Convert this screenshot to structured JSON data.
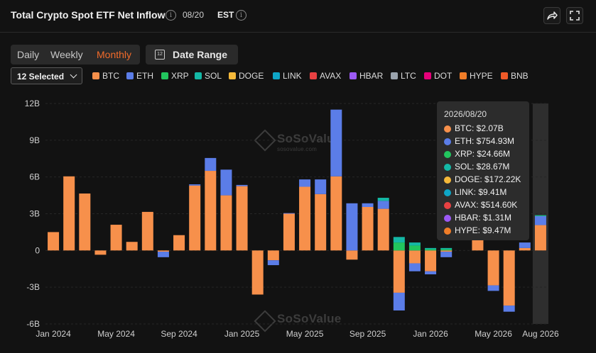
{
  "header": {
    "title": "Total Crypto Spot ETF Net Inflow",
    "date": "08/20",
    "timezone": "EST"
  },
  "toolbar": {
    "periods": [
      "Daily",
      "Weekly",
      "Monthly"
    ],
    "active_period": "Monthly",
    "date_range_label": "Date Range",
    "asset_select_label": "12 Selected"
  },
  "legend": [
    {
      "name": "BTC",
      "color": "#f7904b"
    },
    {
      "name": "ETH",
      "color": "#5b7de8"
    },
    {
      "name": "XRP",
      "color": "#22c55e"
    },
    {
      "name": "SOL",
      "color": "#14b8a6"
    },
    {
      "name": "DOGE",
      "color": "#f5b93a"
    },
    {
      "name": "LINK",
      "color": "#0ea5c6"
    },
    {
      "name": "AVAX",
      "color": "#e84142"
    },
    {
      "name": "HBAR",
      "color": "#9b59f5"
    },
    {
      "name": "LTC",
      "color": "#9aa3ad"
    },
    {
      "name": "DOT",
      "color": "#e6007a"
    },
    {
      "name": "HYPE",
      "color": "#f07d28"
    },
    {
      "name": "BNB",
      "color": "#f05a28"
    }
  ],
  "watermark": {
    "brand": "SoSoValue",
    "sub": "sosovalue.com"
  },
  "tooltip": {
    "date": "2026/08/20",
    "rows": [
      {
        "label": "BTC: $2.07B",
        "color": "#f7904b"
      },
      {
        "label": "ETH: $754.93M",
        "color": "#5b7de8"
      },
      {
        "label": "XRP: $24.66M",
        "color": "#22c55e"
      },
      {
        "label": "SOL: $28.67M",
        "color": "#14b8a6"
      },
      {
        "label": "DOGE: $172.22K",
        "color": "#f5b93a"
      },
      {
        "label": "LINK: $9.41M",
        "color": "#0ea5c6"
      },
      {
        "label": "AVAX: $514.60K",
        "color": "#e84142"
      },
      {
        "label": "HBAR: $1.31M",
        "color": "#9b59f5"
      },
      {
        "label": "HYPE: $9.47M",
        "color": "#f07d28"
      }
    ]
  },
  "chart_data": {
    "type": "bar",
    "stacked": true,
    "title": "Total Crypto Spot ETF Net Inflow",
    "ylim": [
      -6,
      12
    ],
    "yticks": [
      12,
      9,
      6,
      3,
      0,
      -3,
      -6
    ],
    "ytick_labels": [
      "12B",
      "9B",
      "6B",
      "3B",
      "0",
      "-3B",
      "-6B"
    ],
    "y_unit": "USD billions",
    "x_tick_labels": [
      {
        "label": "Jan 2024",
        "month_index": 0
      },
      {
        "label": "May 2024",
        "month_index": 4
      },
      {
        "label": "Sep 2024",
        "month_index": 8
      },
      {
        "label": "Jan 2025",
        "month_index": 12
      },
      {
        "label": "May 2025",
        "month_index": 16
      },
      {
        "label": "Sep 2025",
        "month_index": 20
      },
      {
        "label": "Jan 2026",
        "month_index": 24
      },
      {
        "label": "May 2026",
        "month_index": 28
      },
      {
        "label": "Aug 2026",
        "month_index": 31
      }
    ],
    "categories": [
      "2024-01",
      "2024-02",
      "2024-03",
      "2024-04",
      "2024-05",
      "2024-06",
      "2024-07",
      "2024-08",
      "2024-09",
      "2024-10",
      "2024-11",
      "2024-12",
      "2025-01",
      "2025-02",
      "2025-03",
      "2025-04",
      "2025-05",
      "2025-06",
      "2025-07",
      "2025-08",
      "2025-09",
      "2025-10",
      "2025-11",
      "2025-12",
      "2026-01",
      "2026-02",
      "2026-03",
      "2026-04",
      "2026-05",
      "2026-06",
      "2026-07",
      "2026-08"
    ],
    "highlighted_category": "2026-08",
    "series": [
      {
        "name": "BTC",
        "color": "#f7904b",
        "values": [
          1.5,
          6.05,
          4.65,
          -0.35,
          2.1,
          0.7,
          3.15,
          -0.1,
          1.25,
          5.3,
          6.5,
          4.5,
          5.25,
          -3.6,
          -0.8,
          3.0,
          5.2,
          4.6,
          6.05,
          -0.75,
          3.55,
          3.4,
          -3.45,
          -1.05,
          -1.7,
          -0.1,
          0.0,
          1.4,
          -2.85,
          -4.5,
          0.2,
          2.07
        ]
      },
      {
        "name": "ETH",
        "color": "#5b7de8",
        "values": [
          0.0,
          0.0,
          0.0,
          0.0,
          0.0,
          0.0,
          0.0,
          -0.45,
          0.0,
          0.1,
          1.05,
          2.1,
          0.1,
          0.0,
          -0.4,
          0.05,
          0.6,
          1.2,
          5.45,
          3.85,
          0.3,
          0.65,
          -1.45,
          -0.65,
          -0.25,
          -0.45,
          0.0,
          0.0,
          -0.45,
          -0.5,
          0.45,
          0.75
        ]
      },
      {
        "name": "XRP",
        "color": "#22c55e",
        "values": [
          0,
          0,
          0,
          0,
          0,
          0,
          0,
          0,
          0,
          0,
          0,
          0,
          0,
          0,
          0,
          0,
          0,
          0,
          0,
          0,
          0,
          0,
          0.65,
          0.4,
          0.1,
          0.1,
          0,
          0,
          0,
          0,
          0,
          0.025
        ]
      },
      {
        "name": "SOL",
        "color": "#14b8a6",
        "values": [
          0,
          0,
          0,
          0,
          0,
          0,
          0,
          0,
          0,
          0,
          0,
          0,
          0,
          0,
          0,
          0,
          0,
          0,
          0,
          0,
          0,
          0.25,
          0.45,
          0.25,
          0.1,
          0.1,
          0,
          0,
          0,
          0,
          0,
          0.03
        ]
      }
    ]
  }
}
